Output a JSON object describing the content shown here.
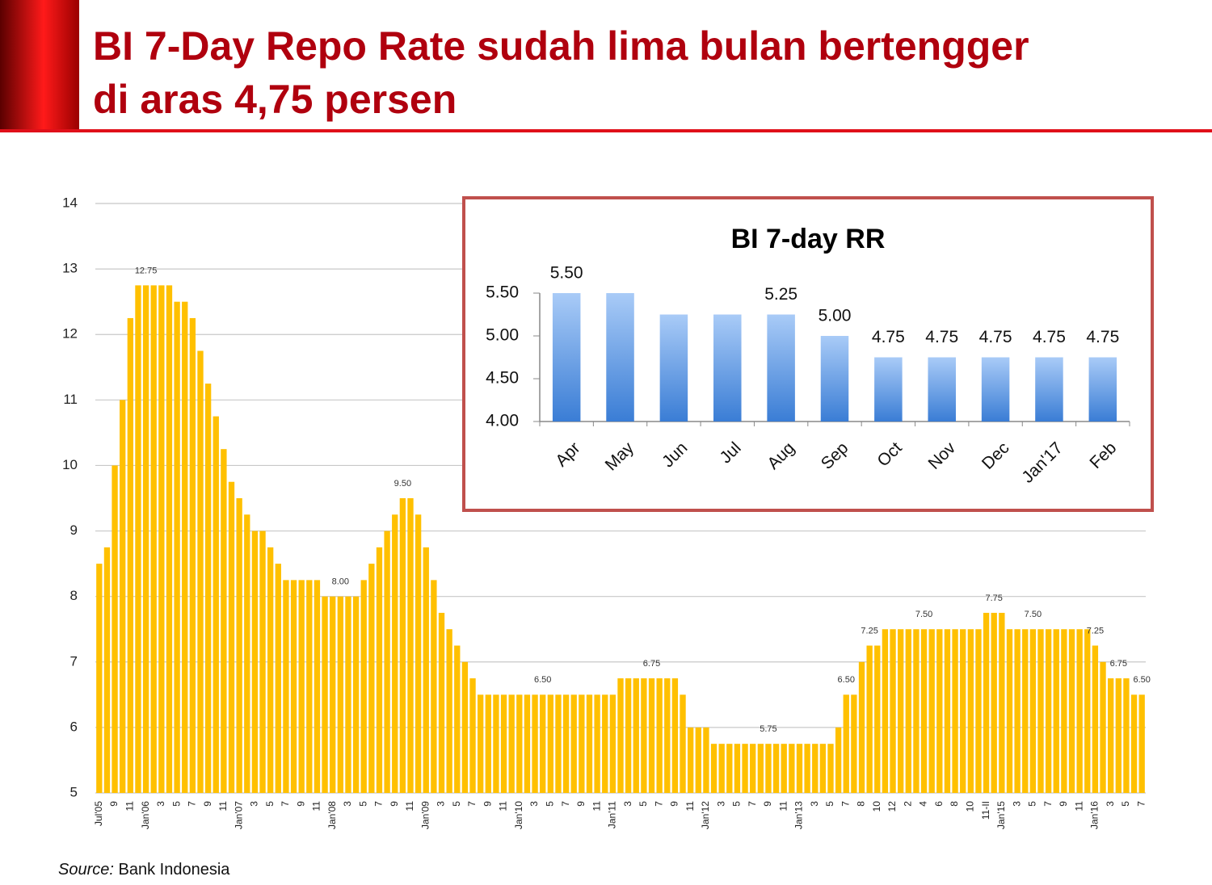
{
  "header": {
    "title": [
      "BI 7-Day Repo Rate sudah lima bulan bertengger",
      "di aras 4,75 persen"
    ]
  },
  "source": {
    "label": "Source:",
    "text": "Bank Indonesia"
  },
  "chart_data": [
    {
      "type": "bar",
      "color": "#ffc000",
      "grid": true,
      "ylim": [
        5,
        14
      ],
      "yticks": [
        5,
        6,
        7,
        8,
        9,
        10,
        11,
        12,
        13,
        14
      ],
      "categories": [
        "Jul'05",
        null,
        "9",
        null,
        "11",
        null,
        "Jan'06",
        null,
        "3",
        null,
        "5",
        null,
        "7",
        null,
        "9",
        null,
        "11",
        null,
        "Jan'07",
        null,
        "3",
        null,
        "5",
        null,
        "7",
        null,
        "9",
        null,
        "11",
        null,
        "Jan'08",
        null,
        "3",
        null,
        "5",
        null,
        "7",
        null,
        "9",
        null,
        "11",
        null,
        "Jan'09",
        null,
        "3",
        null,
        "5",
        null,
        "7",
        null,
        "9",
        null,
        "11",
        null,
        "Jan'10",
        null,
        "3",
        null,
        "5",
        null,
        "7",
        null,
        "9",
        null,
        "11",
        null,
        "Jan'11",
        null,
        "3",
        null,
        "5",
        null,
        "7",
        null,
        "9",
        null,
        "11",
        null,
        "Jan'12",
        null,
        "3",
        null,
        "5",
        null,
        "7",
        null,
        "9",
        null,
        "11",
        null,
        "Jan'13",
        null,
        "3",
        null,
        "5",
        null,
        "7",
        null,
        "8",
        null,
        "10",
        null,
        "12",
        null,
        "2",
        null,
        "4",
        null,
        "6",
        null,
        "8",
        null,
        "10",
        null,
        "11-II",
        null,
        "Jan'15",
        null,
        "3",
        null,
        "5",
        null,
        "7",
        null,
        "9",
        null,
        "11",
        null,
        "Jan'16",
        null,
        "3",
        null,
        "5",
        null,
        "7"
      ],
      "values": [
        8.5,
        8.75,
        10,
        11,
        12.25,
        12.75,
        12.75,
        12.75,
        12.75,
        12.75,
        12.5,
        12.5,
        12.25,
        11.75,
        11.25,
        10.75,
        10.25,
        9.75,
        9.5,
        9.25,
        9,
        9,
        8.75,
        8.5,
        8.25,
        8.25,
        8.25,
        8.25,
        8.25,
        8,
        8,
        8,
        8,
        8,
        8.25,
        8.5,
        8.75,
        9,
        9.25,
        9.5,
        9.5,
        9.25,
        8.75,
        8.25,
        7.75,
        7.5,
        7.25,
        7,
        6.75,
        6.5,
        6.5,
        6.5,
        6.5,
        6.5,
        6.5,
        6.5,
        6.5,
        6.5,
        6.5,
        6.5,
        6.5,
        6.5,
        6.5,
        6.5,
        6.5,
        6.5,
        6.5,
        6.75,
        6.75,
        6.75,
        6.75,
        6.75,
        6.75,
        6.75,
        6.75,
        6.5,
        6,
        6,
        6,
        5.75,
        5.75,
        5.75,
        5.75,
        5.75,
        5.75,
        5.75,
        5.75,
        5.75,
        5.75,
        5.75,
        5.75,
        5.75,
        5.75,
        5.75,
        5.75,
        6,
        6.5,
        6.5,
        7,
        7.25,
        7.25,
        7.5,
        7.5,
        7.5,
        7.5,
        7.5,
        7.5,
        7.5,
        7.5,
        7.5,
        7.5,
        7.5,
        7.5,
        7.5,
        7.75,
        7.75,
        7.75,
        7.5,
        7.5,
        7.5,
        7.5,
        7.5,
        7.5,
        7.5,
        7.5,
        7.5,
        7.5,
        7.5,
        7.25,
        7,
        6.75,
        6.75,
        6.75,
        6.5,
        6.5
      ],
      "value_labels": [
        null,
        null,
        null,
        null,
        null,
        null,
        "12.75",
        null,
        null,
        null,
        null,
        null,
        null,
        null,
        null,
        null,
        null,
        null,
        null,
        null,
        null,
        null,
        null,
        null,
        null,
        null,
        null,
        null,
        null,
        null,
        null,
        "8.00",
        null,
        null,
        null,
        null,
        null,
        null,
        null,
        "9.50",
        null,
        null,
        null,
        null,
        null,
        null,
        null,
        null,
        null,
        null,
        null,
        null,
        null,
        null,
        null,
        null,
        null,
        "6.50",
        null,
        null,
        null,
        null,
        null,
        null,
        null,
        null,
        null,
        null,
        null,
        null,
        null,
        "6.75",
        null,
        null,
        null,
        null,
        null,
        null,
        null,
        null,
        null,
        null,
        null,
        null,
        null,
        null,
        "5.75",
        null,
        null,
        null,
        null,
        null,
        null,
        null,
        null,
        null,
        "6.50",
        null,
        null,
        "7.25",
        null,
        null,
        null,
        null,
        null,
        null,
        "7.50",
        null,
        null,
        null,
        null,
        null,
        null,
        null,
        null,
        "7.75",
        null,
        null,
        null,
        null,
        "7.50",
        null,
        null,
        null,
        null,
        null,
        null,
        null,
        "7.25",
        null,
        null,
        "6.75",
        null,
        null,
        "6.50"
      ]
    },
    {
      "type": "bar",
      "title": "BI 7-day RR",
      "gradient": [
        "#a9cbf7",
        "#3a7dd5"
      ],
      "ylim": [
        4,
        5.5
      ],
      "yticks": [
        {
          "value": 4,
          "label": "4.00"
        },
        {
          "value": 4.5,
          "label": "4.50"
        },
        {
          "value": 5,
          "label": "5.00"
        },
        {
          "value": 5.5,
          "label": "5.50"
        }
      ],
      "categories": [
        "Apr",
        "May",
        "Jun",
        "Jul",
        "Aug",
        "Sep",
        "Oct",
        "Nov",
        "Dec",
        "Jan'17",
        "Feb"
      ],
      "values": [
        5.5,
        5.5,
        5.25,
        5.25,
        5.25,
        5,
        4.75,
        4.75,
        4.75,
        4.75,
        4.75
      ],
      "value_labels": [
        "5.50",
        null,
        null,
        null,
        "5.25",
        "5.00",
        "4.75",
        "4.75",
        "4.75",
        "4.75",
        "4.75"
      ]
    }
  ]
}
